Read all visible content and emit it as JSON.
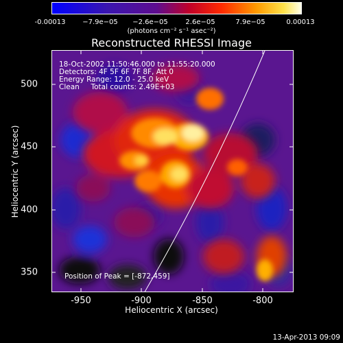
{
  "colorbar": {
    "ticks": [
      "-0.00013",
      "−7.9e−05",
      "−2.6e−05",
      "2.6e−05",
      "7.9e−05",
      "0.00013"
    ],
    "unit": "(photons cm⁻² s⁻¹ asec⁻²)"
  },
  "title": "Reconstructed RHESSI Image",
  "info": {
    "time": "18-Oct-2002 11:50:46.000 to 11:55:20.000",
    "detectors": "Detectors: 4F 5F 6F 7F 8F, Att 0",
    "energy": "Energy Range: 12.0 - 25.0 keV",
    "clean": "Clean     Total counts: 2.49E+03",
    "peak": "Position of Peak = [-872,459]"
  },
  "axes": {
    "xlabel": "Heliocentric X (arcsec)",
    "ylabel": "Heliocentric Y (arcsec)",
    "xticks": [
      "-950",
      "-900",
      "-850",
      "-800"
    ],
    "yticks": [
      "500",
      "450",
      "400",
      "350"
    ]
  },
  "timestamp": "13-Apr-2013 09:09",
  "colors": {
    "background": "#000000",
    "limb": "#ffffff"
  }
}
